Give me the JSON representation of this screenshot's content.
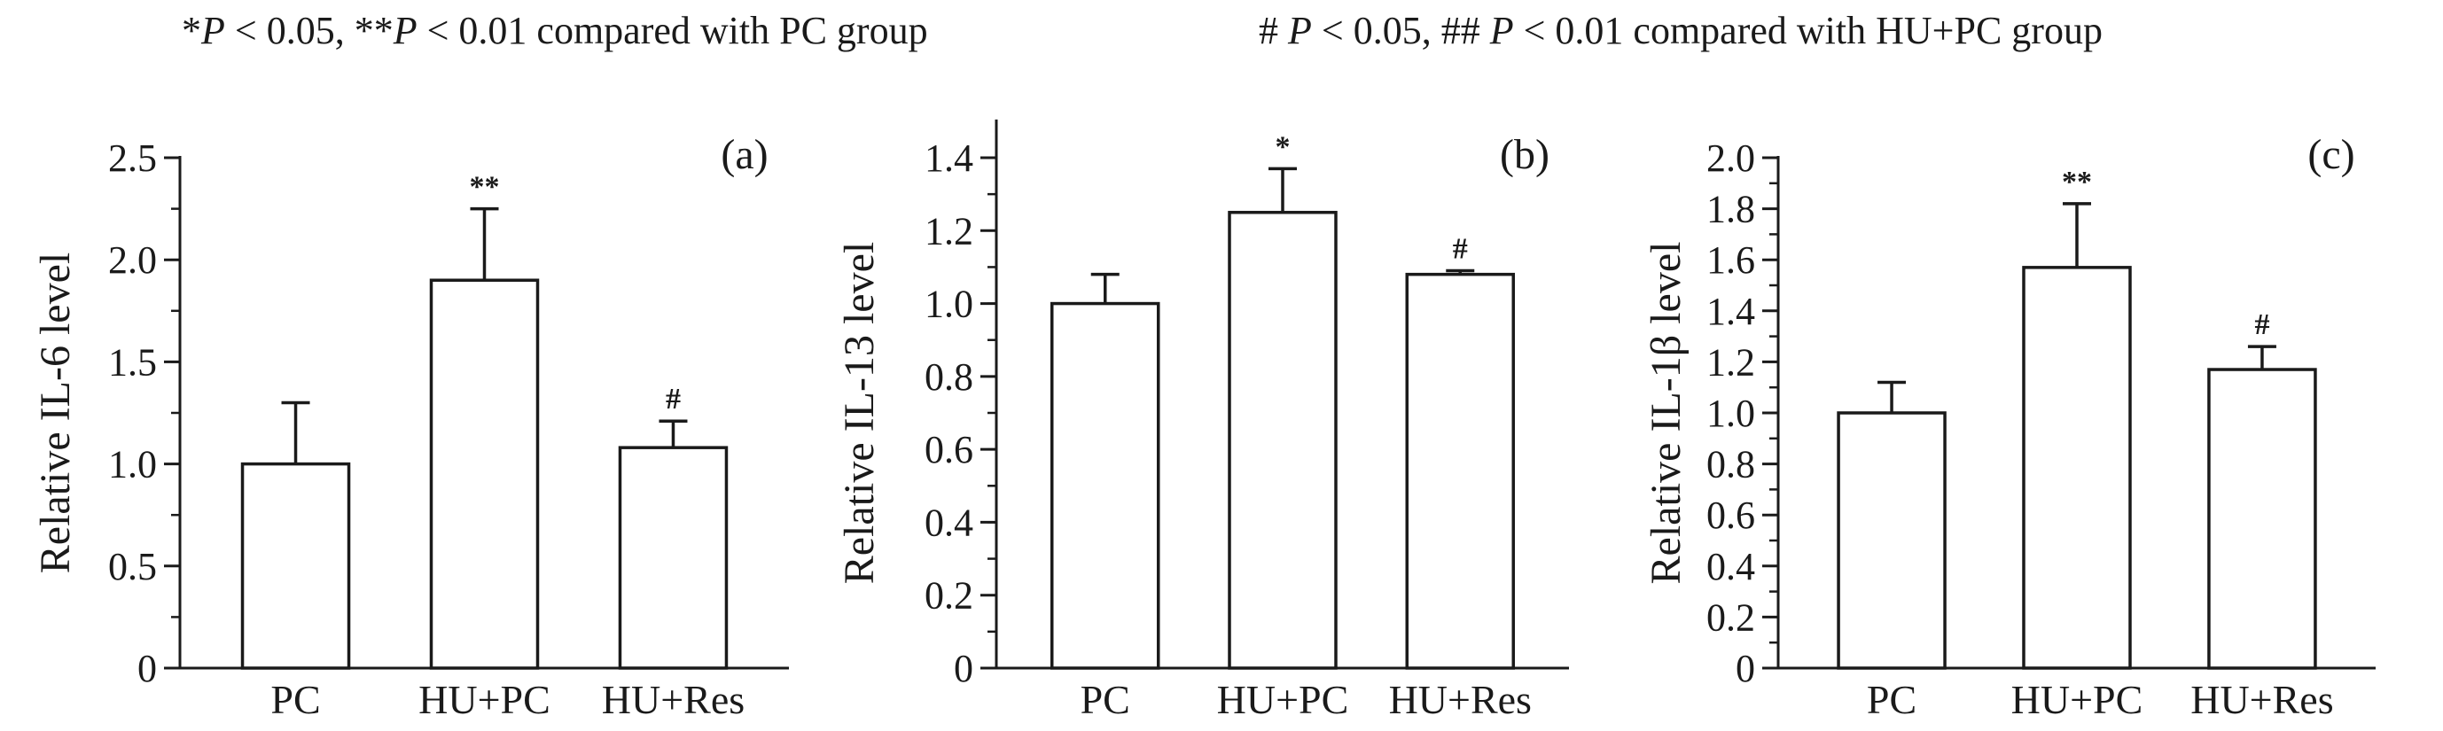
{
  "legend": {
    "left": {
      "s1": "*",
      "p1": "P",
      "t1": " < 0.05,  **",
      "p2": "P",
      "t2": " < 0.01 compared with PC group"
    },
    "right": {
      "s1": "# ",
      "p1": "P",
      "t1": " < 0.05,  ## ",
      "p2": "P",
      "t2": " < 0.01 compared with HU+PC group"
    }
  },
  "chart_data": [
    {
      "type": "bar",
      "panel_label": "(a)",
      "ylabel": "Relative IL-6 level",
      "categories": [
        "PC",
        "HU+PC",
        "HU+Res"
      ],
      "values": [
        1.0,
        1.9,
        1.08
      ],
      "errors": [
        0.3,
        0.35,
        0.13
      ],
      "annotations": [
        "",
        "**",
        "#"
      ],
      "ylim": [
        0,
        2.5
      ],
      "yticks": [
        "0",
        "0.5",
        "1.0",
        "1.5",
        "2.0",
        "2.5"
      ],
      "ytick_values": [
        0,
        0.5,
        1.0,
        1.5,
        2.0,
        2.5
      ],
      "minor_step": 0.25
    },
    {
      "type": "bar",
      "panel_label": "(b)",
      "ylabel": "Relative IL-13 level",
      "categories": [
        "PC",
        "HU+PC",
        "HU+Res"
      ],
      "values": [
        1.0,
        1.25,
        1.08
      ],
      "errors": [
        0.08,
        0.12,
        0.01
      ],
      "annotations": [
        "",
        "*",
        "#"
      ],
      "ylim": [
        0,
        1.5
      ],
      "yticks": [
        "0",
        "0.2",
        "0.4",
        "0.6",
        "0.8",
        "1.0",
        "1.2",
        "1.4"
      ],
      "ytick_values": [
        0,
        0.2,
        0.4,
        0.6,
        0.8,
        1.0,
        1.2,
        1.4
      ],
      "minor_step": 0.1
    },
    {
      "type": "bar",
      "panel_label": "(c)",
      "ylabel": "Relative IL-1β level",
      "categories": [
        "PC",
        "HU+PC",
        "HU+Res"
      ],
      "values": [
        1.0,
        1.57,
        1.17
      ],
      "errors": [
        0.12,
        0.25,
        0.09
      ],
      "annotations": [
        "",
        "**",
        "#"
      ],
      "ylim": [
        0,
        2.0
      ],
      "yticks": [
        "0",
        "0.2",
        "0.4",
        "0.6",
        "0.8",
        "1.0",
        "1.2",
        "1.4",
        "1.6",
        "1.8",
        "2.0"
      ],
      "ytick_values": [
        0,
        0.2,
        0.4,
        0.6,
        0.8,
        1.0,
        1.2,
        1.4,
        1.6,
        1.8,
        2.0
      ],
      "minor_step": 0.1
    }
  ]
}
